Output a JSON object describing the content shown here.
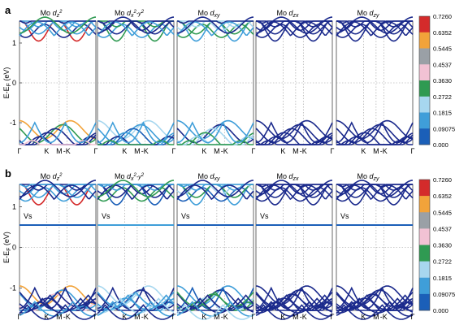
{
  "figure": {
    "panel_labels": [
      "a",
      "b"
    ],
    "orbital_prefix": "Mo",
    "orbitals": [
      {
        "base": "d",
        "sub": "z",
        "sup": "2",
        "sup2": ""
      },
      {
        "base": "d",
        "sub": "x",
        "sup": "2",
        "sup2": "-y",
        "sup3": "2"
      },
      {
        "base": "d",
        "sub": "xy",
        "sup": "",
        "sup2": ""
      },
      {
        "base": "d",
        "sub": "zx",
        "sup": "",
        "sup2": ""
      },
      {
        "base": "d",
        "sub": "zy",
        "sup": "",
        "sup2": ""
      }
    ],
    "ylabel_main": "E-E",
    "ylabel_sub": "F",
    "ylabel_unit": " (eV)",
    "vs_label": "Vs",
    "colors": [
      "#1b2a8c",
      "#1b5fb8",
      "#3f9ed9",
      "#a7d7ef",
      "#2f9a52",
      "#f2c2d4",
      "#9aa0a6",
      "#f2a33a",
      "#d42b2b"
    ]
  },
  "chart_data": {
    "type": "line",
    "description_of_axes": "band structure along k-path",
    "x_ticks": [
      "Γ",
      "K",
      "M",
      "-K",
      "Γ"
    ],
    "y_ticks": [
      "1",
      "0",
      "-1"
    ],
    "ylim": [
      -1.55,
      1.55
    ],
    "colorbar_ticks": [
      "0.7260",
      "0.6352",
      "0.5445",
      "0.4537",
      "0.3630",
      "0.2722",
      "0.1815",
      "0.09075",
      "0.000"
    ],
    "colorbar_range": [
      0.0,
      0.726
    ],
    "panels": {
      "a": {
        "defect_level_ev": null
      },
      "b": {
        "defect_level_ev": 0.55
      }
    }
  }
}
